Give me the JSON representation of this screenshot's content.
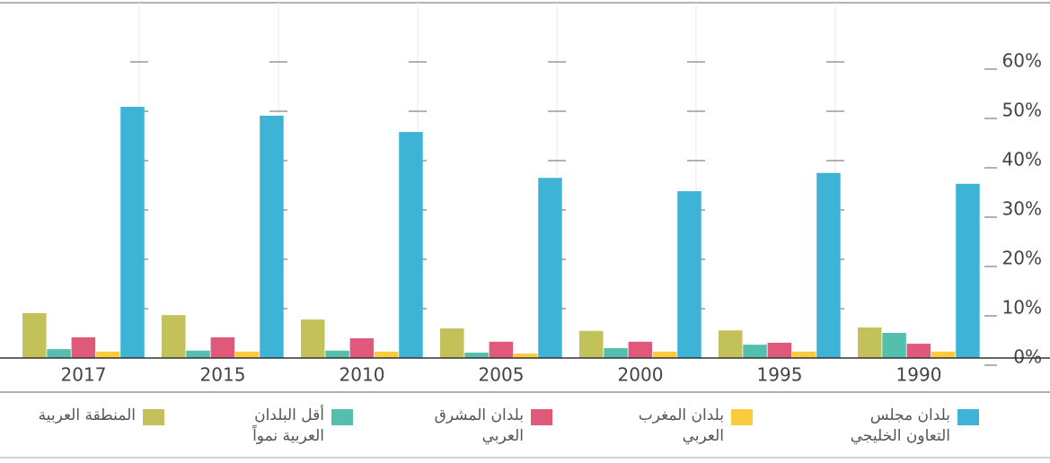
{
  "chart_data": {
    "type": "bar",
    "categories": [
      "2017",
      "2015",
      "2010",
      "2005",
      "2000",
      "1995",
      "1990"
    ],
    "series": [
      {
        "name": "المنطقة العربية",
        "color": "#c3c25a",
        "values": [
          9.1,
          8.7,
          7.8,
          6.0,
          5.5,
          5.6,
          6.2
        ]
      },
      {
        "name": "أقل البلدان العربية نمواً",
        "color": "#55bfae",
        "values": [
          1.8,
          1.5,
          1.5,
          1.1,
          2.0,
          2.7,
          5.1
        ]
      },
      {
        "name": "بلدان المشرق العربي",
        "color": "#e0587a",
        "values": [
          4.2,
          4.2,
          4.0,
          3.3,
          3.3,
          3.1,
          2.9
        ]
      },
      {
        "name": "بلدان المغرب العربي",
        "color": "#fbcb3c",
        "values": [
          1.3,
          1.3,
          1.3,
          0.9,
          1.3,
          1.3,
          1.3
        ]
      },
      {
        "name": "بلدان مجلس التعاون الخليجي",
        "color": "#3db3d6",
        "values": [
          50.9,
          49.1,
          45.8,
          36.5,
          33.8,
          37.5,
          35.3
        ]
      }
    ],
    "ylim": [
      0,
      60
    ],
    "yticks": [
      {
        "value": 0,
        "label": "0%"
      },
      {
        "value": 10,
        "label": "10%"
      },
      {
        "value": 20,
        "label": "20%"
      },
      {
        "value": 30,
        "label": "30%"
      },
      {
        "value": 40,
        "label": "40%"
      },
      {
        "value": 50,
        "label": "50%"
      },
      {
        "value": 60,
        "label": "60%"
      }
    ],
    "grid": true
  }
}
